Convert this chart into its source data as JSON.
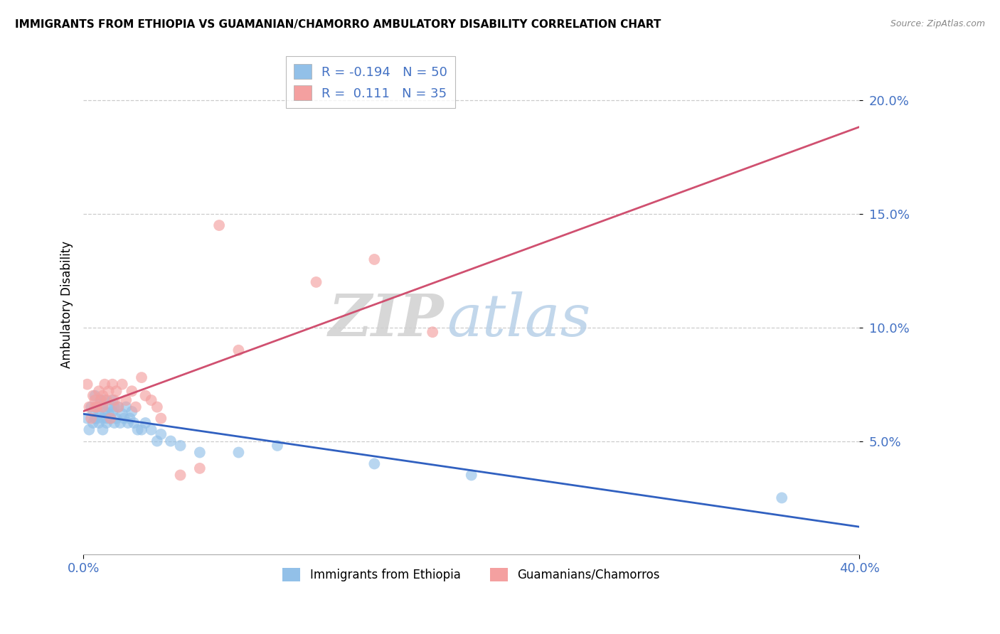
{
  "title": "IMMIGRANTS FROM ETHIOPIA VS GUAMANIAN/CHAMORRO AMBULATORY DISABILITY CORRELATION CHART",
  "source": "Source: ZipAtlas.com",
  "ylabel": "Ambulatory Disability",
  "yticks": [
    "5.0%",
    "10.0%",
    "15.0%",
    "20.0%"
  ],
  "ytick_values": [
    0.05,
    0.1,
    0.15,
    0.2
  ],
  "xlim": [
    0.0,
    0.4
  ],
  "ylim": [
    0.0,
    0.22
  ],
  "legend1_label": "Immigrants from Ethiopia",
  "legend2_label": "Guamanians/Chamorros",
  "r1": -0.194,
  "n1": 50,
  "r2": 0.111,
  "n2": 35,
  "color_blue": "#92C0E8",
  "color_pink": "#F4A0A0",
  "color_blue_line": "#3060C0",
  "color_pink_line": "#D05070",
  "color_pink_dashed": "#D08090",
  "blue_x": [
    0.002,
    0.003,
    0.004,
    0.005,
    0.005,
    0.006,
    0.006,
    0.007,
    0.007,
    0.008,
    0.008,
    0.009,
    0.01,
    0.01,
    0.01,
    0.011,
    0.011,
    0.012,
    0.012,
    0.013,
    0.013,
    0.014,
    0.015,
    0.015,
    0.016,
    0.016,
    0.017,
    0.018,
    0.019,
    0.02,
    0.021,
    0.022,
    0.023,
    0.024,
    0.025,
    0.026,
    0.028,
    0.03,
    0.032,
    0.035,
    0.038,
    0.04,
    0.045,
    0.05,
    0.06,
    0.08,
    0.1,
    0.15,
    0.2,
    0.36
  ],
  "blue_y": [
    0.06,
    0.055,
    0.065,
    0.058,
    0.063,
    0.06,
    0.07,
    0.06,
    0.065,
    0.058,
    0.062,
    0.068,
    0.06,
    0.065,
    0.055,
    0.063,
    0.068,
    0.058,
    0.06,
    0.062,
    0.065,
    0.06,
    0.063,
    0.068,
    0.058,
    0.065,
    0.06,
    0.065,
    0.058,
    0.062,
    0.06,
    0.065,
    0.058,
    0.06,
    0.063,
    0.058,
    0.055,
    0.055,
    0.058,
    0.055,
    0.05,
    0.053,
    0.05,
    0.048,
    0.045,
    0.045,
    0.048,
    0.04,
    0.035,
    0.025
  ],
  "pink_x": [
    0.002,
    0.003,
    0.004,
    0.005,
    0.006,
    0.006,
    0.007,
    0.008,
    0.009,
    0.01,
    0.01,
    0.011,
    0.012,
    0.013,
    0.014,
    0.015,
    0.016,
    0.017,
    0.018,
    0.02,
    0.022,
    0.025,
    0.027,
    0.03,
    0.032,
    0.035,
    0.038,
    0.04,
    0.05,
    0.06,
    0.07,
    0.08,
    0.12,
    0.15,
    0.18
  ],
  "pink_y": [
    0.075,
    0.065,
    0.06,
    0.07,
    0.065,
    0.068,
    0.065,
    0.072,
    0.068,
    0.07,
    0.065,
    0.075,
    0.068,
    0.072,
    0.06,
    0.075,
    0.068,
    0.072,
    0.065,
    0.075,
    0.068,
    0.072,
    0.065,
    0.078,
    0.07,
    0.068,
    0.065,
    0.06,
    0.035,
    0.038,
    0.145,
    0.09,
    0.12,
    0.13,
    0.098
  ],
  "watermark_zip": "ZIP",
  "watermark_atlas": "atlas"
}
